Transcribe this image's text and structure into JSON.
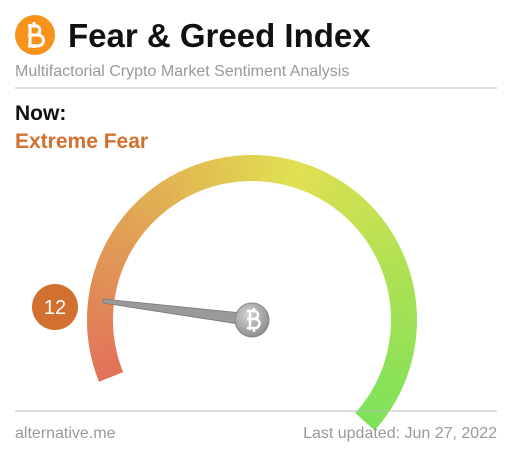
{
  "chart_data": {
    "type": "gauge",
    "title": "Fear & Greed Index",
    "subtitle": "Multifactorial Crypto Market Sentiment Analysis",
    "now_label": "Now:",
    "classification": "Extreme Fear",
    "value": 12,
    "ylim": [
      0,
      100
    ],
    "source": "alternative.me",
    "updated": "Last updated: Jun 27, 2022"
  }
}
